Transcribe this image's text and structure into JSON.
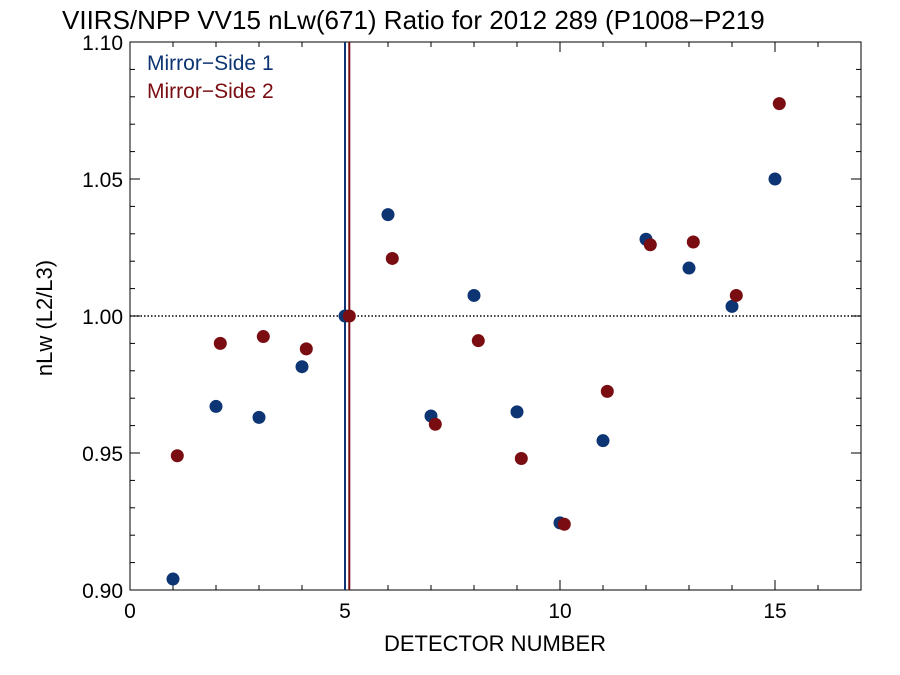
{
  "chart_data": {
    "type": "scatter",
    "title": "VIIRS/NPP VV15 nLw(671) Ratio for 2012 289 (P1008−P219",
    "xlabel": "DETECTOR NUMBER",
    "ylabel": "nLw (L2/L3)",
    "xlim": [
      0,
      17
    ],
    "ylim": [
      0.9,
      1.1
    ],
    "x_ticks": [
      0,
      5,
      10,
      15
    ],
    "x_tick_labels": [
      "0",
      "5",
      "10",
      "15"
    ],
    "y_ticks": [
      0.9,
      0.95,
      1.0,
      1.05,
      1.1
    ],
    "y_tick_labels": [
      "0.90",
      "0.95",
      "1.00",
      "1.05",
      "1.10"
    ],
    "reference_line_y": 1.0,
    "vertical_lines_x": [
      5,
      5.1
    ],
    "legend_position": "top-left",
    "series": [
      {
        "name": "Mirror−Side 1",
        "color": "#0d3573",
        "x": [
          1,
          2,
          3,
          4,
          5,
          6,
          7,
          8,
          9,
          10,
          11,
          12,
          13,
          14,
          15
        ],
        "y": [
          0.904,
          0.967,
          0.963,
          0.9815,
          1.0,
          1.037,
          0.9635,
          1.0075,
          0.965,
          0.9245,
          0.9545,
          1.028,
          1.0175,
          1.0035,
          1.05
        ]
      },
      {
        "name": "Mirror−Side 2",
        "color": "#7a0d11",
        "x": [
          1.1,
          2.1,
          3.1,
          4.1,
          5.1,
          6.1,
          7.1,
          8.1,
          9.1,
          10.1,
          11.1,
          12.1,
          13.1,
          14.1,
          15.1
        ],
        "y": [
          0.949,
          0.99,
          0.9925,
          0.988,
          1.0,
          1.021,
          0.9605,
          0.991,
          0.948,
          0.924,
          0.9725,
          1.026,
          1.027,
          1.0075,
          1.0775
        ]
      }
    ]
  }
}
